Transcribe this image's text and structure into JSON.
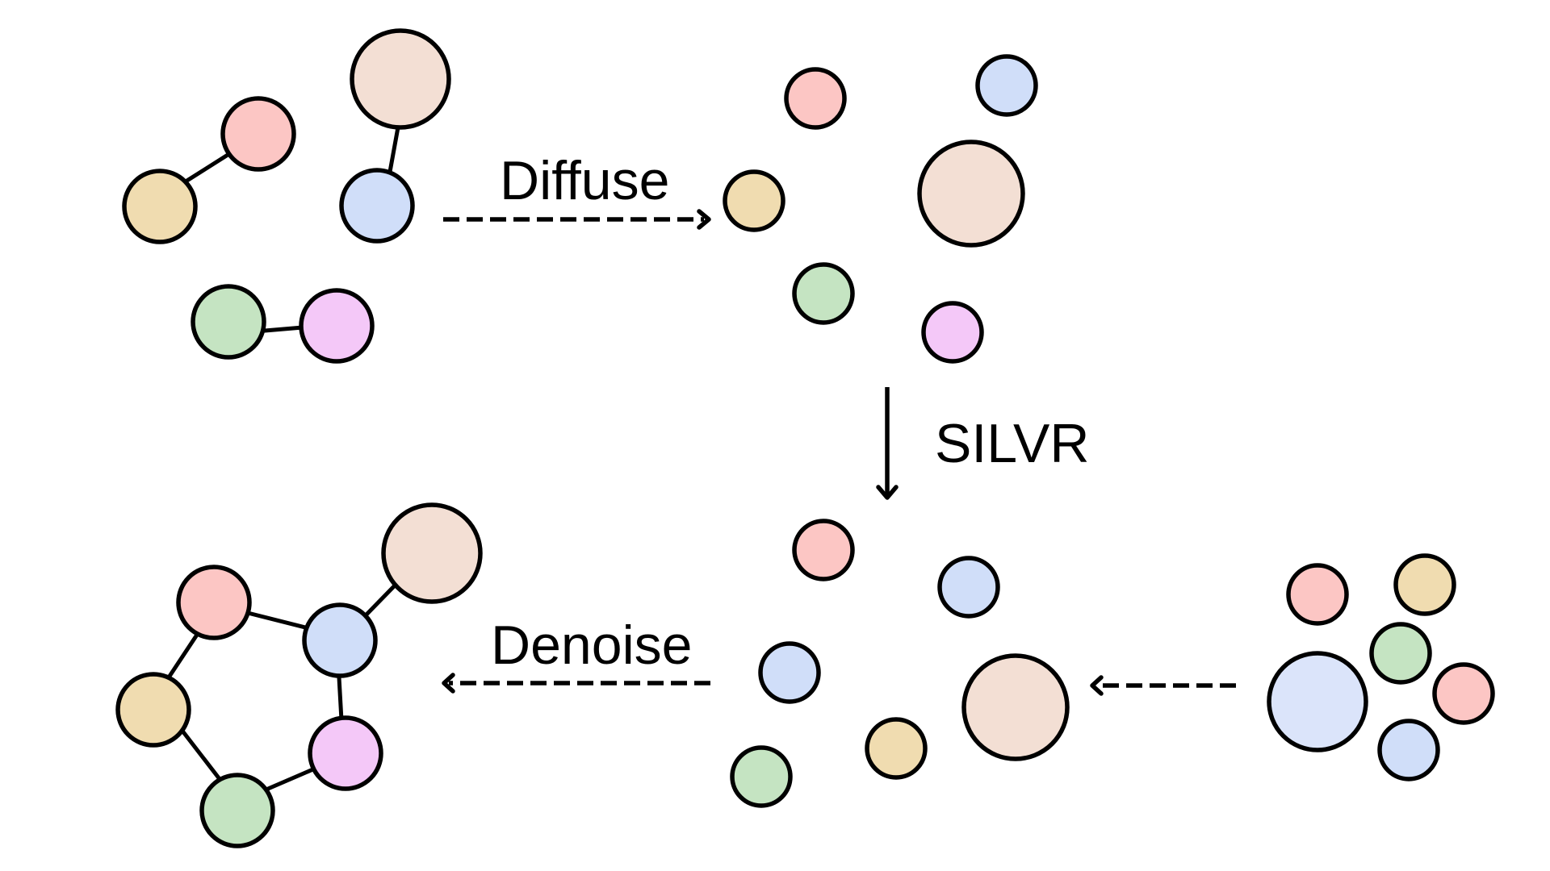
{
  "colors": {
    "salmon": "#fcc6c4",
    "blue": "#d0def9",
    "blue_light": "#dbe4fa",
    "tan": "#f0dcb0",
    "peach": "#f3dfd4",
    "green": "#c5e4c2",
    "pink": "#f4c8f8",
    "outline": "#000000"
  },
  "steps": {
    "diffuse_label": "Diffuse",
    "silvr_label": "SILVR",
    "denoise_label": "Denoise"
  }
}
